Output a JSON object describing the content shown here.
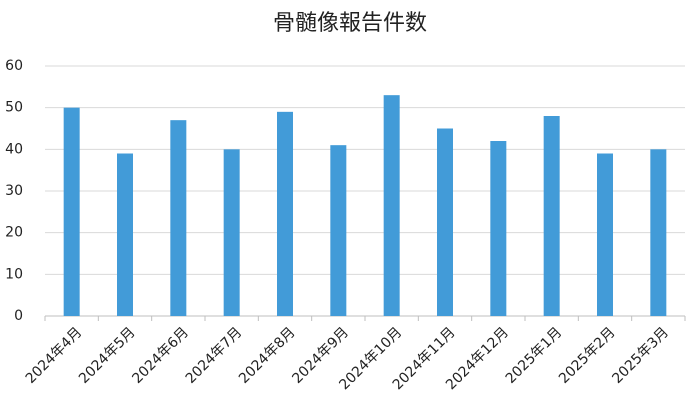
{
  "chart_data": {
    "type": "bar",
    "title": "骨髄像報告件数",
    "categories": [
      "2024年4月",
      "2024年5月",
      "2024年6月",
      "2024年7月",
      "2024年8月",
      "2024年9月",
      "2024年10月",
      "2024年11月",
      "2024年12月",
      "2025年1月",
      "2025年2月",
      "2025年3月"
    ],
    "values": [
      50,
      39,
      47,
      40,
      49,
      41,
      53,
      45,
      42,
      48,
      39,
      40
    ],
    "color": "#429bd8",
    "ylim": [
      0,
      60
    ],
    "yticks": [
      0,
      10,
      20,
      30,
      40,
      50,
      60
    ],
    "grid": true
  }
}
